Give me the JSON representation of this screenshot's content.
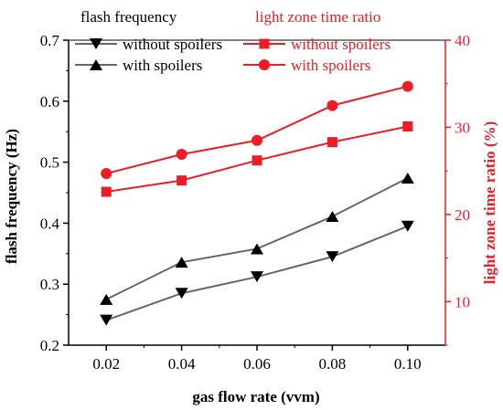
{
  "chart_data": {
    "type": "line",
    "x": [
      0.02,
      0.04,
      0.06,
      0.08,
      0.1
    ],
    "x_tick_labels": [
      "0.02",
      "0.04",
      "0.06",
      "0.08",
      "0.10"
    ],
    "xlabel": "gas flow rate (vvm)",
    "xlim": [
      0.01,
      0.11
    ],
    "left_axis": {
      "label": "flash frequency (Hz)",
      "ylim": [
        0.2,
        0.7
      ],
      "ticks": [
        "0.2",
        "0.3",
        "0.4",
        "0.5",
        "0.6",
        "0.7"
      ],
      "color": "#000000"
    },
    "right_axis": {
      "label": "light zone time ratio (%)",
      "ylim": [
        5,
        40
      ],
      "ticks": [
        "10",
        "20",
        "30",
        "40"
      ],
      "color": "#ee1c25"
    },
    "legend_left": {
      "title": "flash frequency",
      "entries": [
        "without spoilers",
        "with spoilers"
      ]
    },
    "legend_right": {
      "title": "light zone time ratio",
      "entries": [
        "without spoilers",
        "with spoilers"
      ]
    },
    "series": [
      {
        "name": "without spoilers",
        "axis": "left",
        "marker": "triangle-down",
        "color": "#000000",
        "line_color": "#666666",
        "values": [
          0.241,
          0.285,
          0.312,
          0.345,
          0.395
        ]
      },
      {
        "name": "with spoilers",
        "axis": "left",
        "marker": "triangle-up",
        "color": "#000000",
        "line_color": "#666666",
        "values": [
          0.275,
          0.336,
          0.358,
          0.411,
          0.474
        ]
      },
      {
        "name": "without spoilers",
        "axis": "right",
        "marker": "square",
        "color": "#ee1c25",
        "line_color": "#ee1c25",
        "values": [
          22.6,
          23.9,
          26.2,
          28.3,
          30.1
        ]
      },
      {
        "name": "with spoilers",
        "axis": "right",
        "marker": "circle",
        "color": "#ee1c25",
        "line_color": "#ee1c25",
        "values": [
          24.7,
          26.9,
          28.5,
          32.5,
          34.7
        ]
      }
    ]
  }
}
